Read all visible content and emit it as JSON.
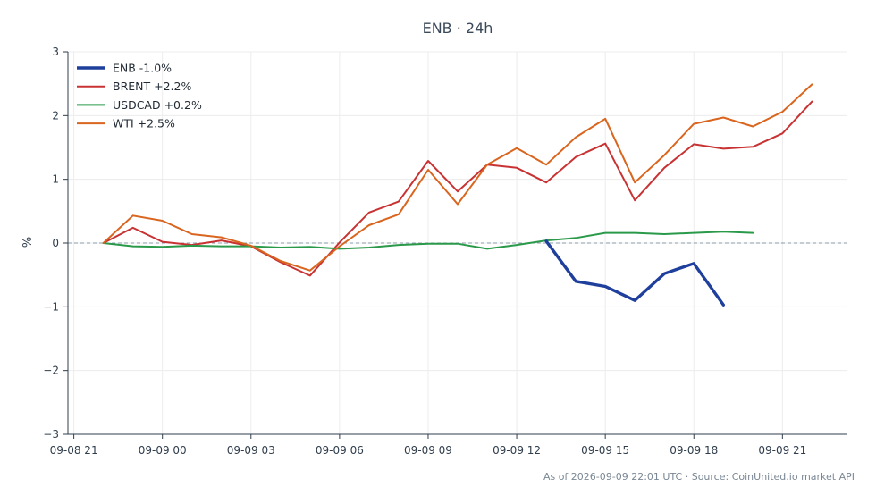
{
  "chart_data": {
    "type": "line",
    "title": "ENB · 24h",
    "xlabel": "",
    "ylabel": "%",
    "ylim": [
      -3,
      3
    ],
    "yticks": [
      "3",
      "2",
      "1",
      "0",
      "−1",
      "−2",
      "−3"
    ],
    "ytick_values": [
      3,
      2,
      1,
      0,
      -1,
      -2,
      -3
    ],
    "xticks": [
      "09-08 21",
      "09-09 00",
      "09-09 03",
      "09-09 06",
      "09-09 09",
      "09-09 12",
      "09-09 15",
      "09-09 18",
      "09-09 21"
    ],
    "xtick_hours": [
      21,
      24,
      27,
      30,
      33,
      36,
      39,
      42,
      45
    ],
    "xlim_hours": [
      20.8,
      47.2
    ],
    "grid": true,
    "zero_line": true,
    "legend_position": "top-left",
    "series": [
      {
        "name": "ENB -1.0%",
        "color": "#1f3f9c",
        "x_hours": [
          37,
          38,
          39,
          40,
          41,
          42,
          43
        ],
        "values": [
          0.03,
          -0.6,
          -0.68,
          -0.9,
          -0.48,
          -0.32,
          -0.97
        ]
      },
      {
        "name": "BRENT +2.2%",
        "color": "#c83232",
        "x_hours": [
          22,
          23,
          24,
          25,
          26,
          27,
          28,
          29,
          30,
          31,
          32,
          33,
          34,
          35,
          36,
          37,
          38,
          39,
          40,
          41,
          42,
          43,
          44,
          45,
          46
        ],
        "values": [
          0,
          0.24,
          0.02,
          -0.03,
          0.04,
          -0.05,
          -0.3,
          -0.51,
          0.01,
          0.48,
          0.65,
          1.29,
          0.81,
          1.23,
          1.18,
          0.95,
          1.35,
          1.56,
          0.67,
          1.18,
          1.55,
          1.48,
          1.51,
          1.72,
          2.22
        ]
      },
      {
        "name": "USDCAD +0.2%",
        "color": "#2a9a4a",
        "x_hours": [
          22,
          23,
          24,
          25,
          26,
          27,
          28,
          29,
          30,
          31,
          32,
          33,
          34,
          35,
          36,
          37,
          38,
          39,
          40,
          41,
          42,
          43,
          44
        ],
        "values": [
          0,
          -0.05,
          -0.06,
          -0.04,
          -0.05,
          -0.05,
          -0.07,
          -0.06,
          -0.09,
          -0.07,
          -0.03,
          -0.01,
          -0.01,
          -0.09,
          -0.03,
          0.04,
          0.08,
          0.16,
          0.16,
          0.14,
          0.16,
          0.18,
          0.16
        ]
      },
      {
        "name": "WTI +2.5%",
        "color": "#d9651e",
        "x_hours": [
          22,
          23,
          24,
          25,
          26,
          27,
          28,
          29,
          30,
          31,
          32,
          33,
          34,
          35,
          36,
          37,
          38,
          39,
          40,
          41,
          42,
          43,
          44,
          45,
          46
        ],
        "values": [
          0,
          0.43,
          0.35,
          0.14,
          0.09,
          -0.04,
          -0.28,
          -0.43,
          -0.05,
          0.28,
          0.45,
          1.15,
          0.61,
          1.23,
          1.49,
          1.23,
          1.66,
          1.95,
          0.95,
          1.38,
          1.87,
          1.97,
          1.83,
          2.06,
          2.49
        ]
      }
    ]
  },
  "footer": {
    "source_text": "As of 2026-09-09 22:01 UTC · Source: CoinUnited.io market API"
  }
}
